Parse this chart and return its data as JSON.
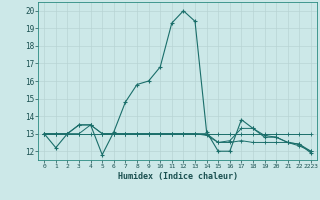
{
  "title": "",
  "xlabel": "Humidex (Indice chaleur)",
  "xlim": [
    -0.5,
    23.5
  ],
  "ylim": [
    11.5,
    20.5
  ],
  "yticks": [
    12,
    13,
    14,
    15,
    16,
    17,
    18,
    19,
    20
  ],
  "bg_color": "#cce8e8",
  "grid_color": "#b8d4d4",
  "line_color": "#1a6e6a",
  "lines": [
    [
      13,
      12.2,
      13,
      13.5,
      13.5,
      11.8,
      13.1,
      14.8,
      15.8,
      16.0,
      16.8,
      19.3,
      20.0,
      19.4,
      13.1,
      12.0,
      12.0,
      13.8,
      13.3,
      12.8,
      12.8,
      12.5,
      12.4,
      11.9
    ],
    [
      13,
      13,
      13,
      13,
      13,
      13,
      13,
      13,
      13,
      13,
      13,
      13,
      13,
      13,
      13,
      13,
      13,
      13,
      13,
      13,
      13,
      13,
      13,
      13
    ],
    [
      13,
      13,
      13,
      13,
      13.5,
      13,
      13,
      13,
      13,
      13,
      13,
      13,
      13,
      13,
      12.9,
      12.5,
      12.5,
      12.6,
      12.5,
      12.5,
      12.5,
      12.5,
      12.3,
      12.0
    ],
    [
      13,
      13,
      13,
      13.5,
      13.5,
      13,
      13,
      13,
      13,
      13,
      13,
      13,
      13,
      13,
      13,
      12.5,
      12.6,
      13.3,
      13.3,
      12.9,
      12.8,
      12.5,
      12.4,
      12.0
    ]
  ]
}
